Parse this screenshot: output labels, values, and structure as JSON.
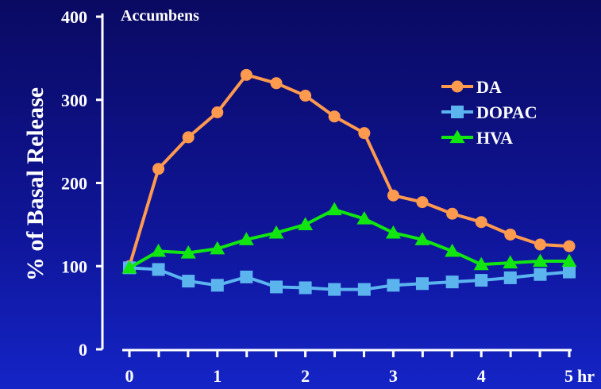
{
  "chart_data": {
    "type": "line",
    "title": "Accumbens",
    "ylabel": "% of Basal Release",
    "xlabel": "",
    "x_unit_label": "hr",
    "ylim": [
      0,
      400
    ],
    "xlim": [
      0,
      5
    ],
    "y_ticks": [
      "0",
      "100",
      "200",
      "300",
      "400"
    ],
    "x_ticks": [
      "0",
      "1",
      "2",
      "3",
      "4",
      "5"
    ],
    "legend_position": "top-right",
    "grid": false,
    "x": [
      0,
      0.33,
      0.67,
      1,
      1.33,
      1.67,
      2,
      2.33,
      2.67,
      3,
      3.33,
      3.67,
      4,
      4.33,
      4.67,
      5
    ],
    "series": [
      {
        "name": "DA",
        "color": "#ff9a4f",
        "marker": "circle",
        "values": [
          100,
          217,
          255,
          285,
          330,
          320,
          305,
          280,
          260,
          185,
          177,
          163,
          153,
          138,
          126,
          124
        ]
      },
      {
        "name": "DOPAC",
        "color": "#5bb4ee",
        "marker": "square",
        "values": [
          98,
          96,
          82,
          77,
          87,
          75,
          74,
          72,
          72,
          77,
          79,
          81,
          83,
          86,
          90,
          93
        ]
      },
      {
        "name": "HVA",
        "color": "#11e611",
        "marker": "triangle",
        "values": [
          98,
          118,
          116,
          121,
          132,
          140,
          150,
          168,
          157,
          140,
          132,
          118,
          102,
          104,
          106,
          106
        ]
      }
    ]
  }
}
